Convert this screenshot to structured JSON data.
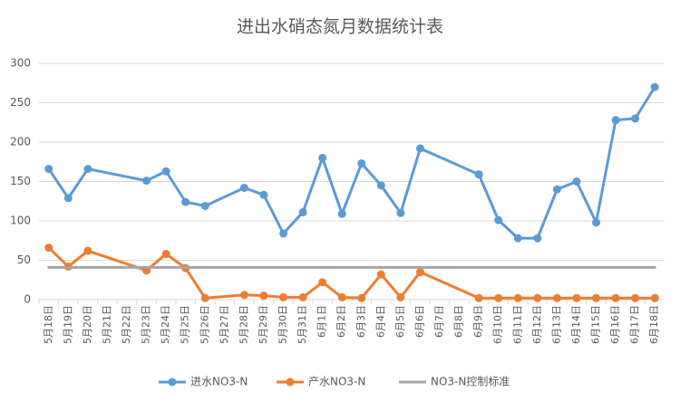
{
  "chart_data": {
    "type": "line",
    "title": "进出水硝态氮月数据统计表",
    "categories": [
      "5月18日",
      "5月19日",
      "5月20日",
      "5月21日",
      "5月22日",
      "5月23日",
      "5月24日",
      "5月25日",
      "5月26日",
      "5月27日",
      "5月28日",
      "5月29日",
      "5月30日",
      "5月31日",
      "6月1日",
      "6月2日",
      "6月3日",
      "6月4日",
      "6月5日",
      "6月6日",
      "6月7日",
      "6月8日",
      "6月9日",
      "6月10日",
      "6月11日",
      "6月12日",
      "6月13日",
      "6月14日",
      "6月15日",
      "6月16日",
      "6月17日",
      "6月18日"
    ],
    "series": [
      {
        "name": "进水NO3-N",
        "color": "#5b9bd5",
        "markers": true,
        "values": [
          166,
          129,
          166,
          null,
          null,
          151,
          163,
          124,
          119,
          null,
          142,
          133,
          84,
          111,
          180,
          109,
          173,
          145,
          110,
          192,
          null,
          null,
          159,
          101,
          78,
          78,
          140,
          150,
          98,
          228,
          230,
          270
        ]
      },
      {
        "name": "产水NO3-N",
        "color": "#ed7d31",
        "markers": true,
        "values": [
          66,
          42,
          62,
          null,
          null,
          37,
          58,
          40,
          2,
          null,
          6,
          5,
          3,
          3,
          22,
          3,
          2,
          32,
          3,
          35,
          null,
          null,
          2,
          2,
          2,
          2,
          2,
          2,
          2,
          2,
          2,
          2
        ]
      },
      {
        "name": "NO3-N控制标准",
        "color": "#a5a5a5",
        "markers": false,
        "values": [
          41,
          41,
          41,
          41,
          41,
          41,
          41,
          41,
          41,
          41,
          41,
          41,
          41,
          41,
          41,
          41,
          41,
          41,
          41,
          41,
          41,
          41,
          41,
          41,
          41,
          41,
          41,
          41,
          41,
          41,
          41,
          41
        ]
      }
    ],
    "connect_gaps": true,
    "ylim": [
      0,
      300
    ],
    "yticks": [
      0,
      50,
      100,
      150,
      200,
      250,
      300
    ],
    "grid": true,
    "legend": "bottom"
  }
}
